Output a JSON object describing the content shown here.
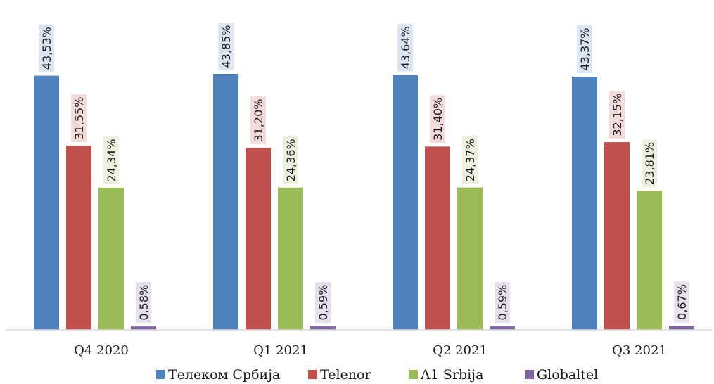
{
  "chart_data": {
    "type": "bar",
    "categories": [
      "Q4 2020",
      "Q1 2021",
      "Q2 2021",
      "Q3 2021"
    ],
    "series": [
      {
        "name": "Телеком Србија",
        "color": "#4F81BD",
        "label_bg": "#DCE6F2",
        "values": [
          43.53,
          43.85,
          43.64,
          43.37
        ],
        "labels": [
          "43,53%",
          "43,85%",
          "43,64%",
          "43,37%"
        ]
      },
      {
        "name": "Telenor",
        "color": "#C0504D",
        "label_bg": "#F2DCDB",
        "values": [
          31.55,
          31.2,
          31.4,
          32.15
        ],
        "labels": [
          "31,55%",
          "31,20%",
          "31,40%",
          "32,15%"
        ]
      },
      {
        "name": "A1 Srbija",
        "color": "#9BBB59",
        "label_bg": "#EBF1DE",
        "values": [
          24.34,
          24.36,
          24.37,
          23.81
        ],
        "labels": [
          "24,34%",
          "24,36%",
          "24,37%",
          "23,81%"
        ]
      },
      {
        "name": "Globaltel",
        "color": "#8064A2",
        "label_bg": "#E5E0EC",
        "values": [
          0.58,
          0.59,
          0.59,
          0.67
        ],
        "labels": [
          "0,58%",
          "0,59%",
          "0,59%",
          "0,67%"
        ]
      }
    ],
    "ylim": [
      0,
      44
    ],
    "grid": false,
    "legend_position": "bottom"
  }
}
